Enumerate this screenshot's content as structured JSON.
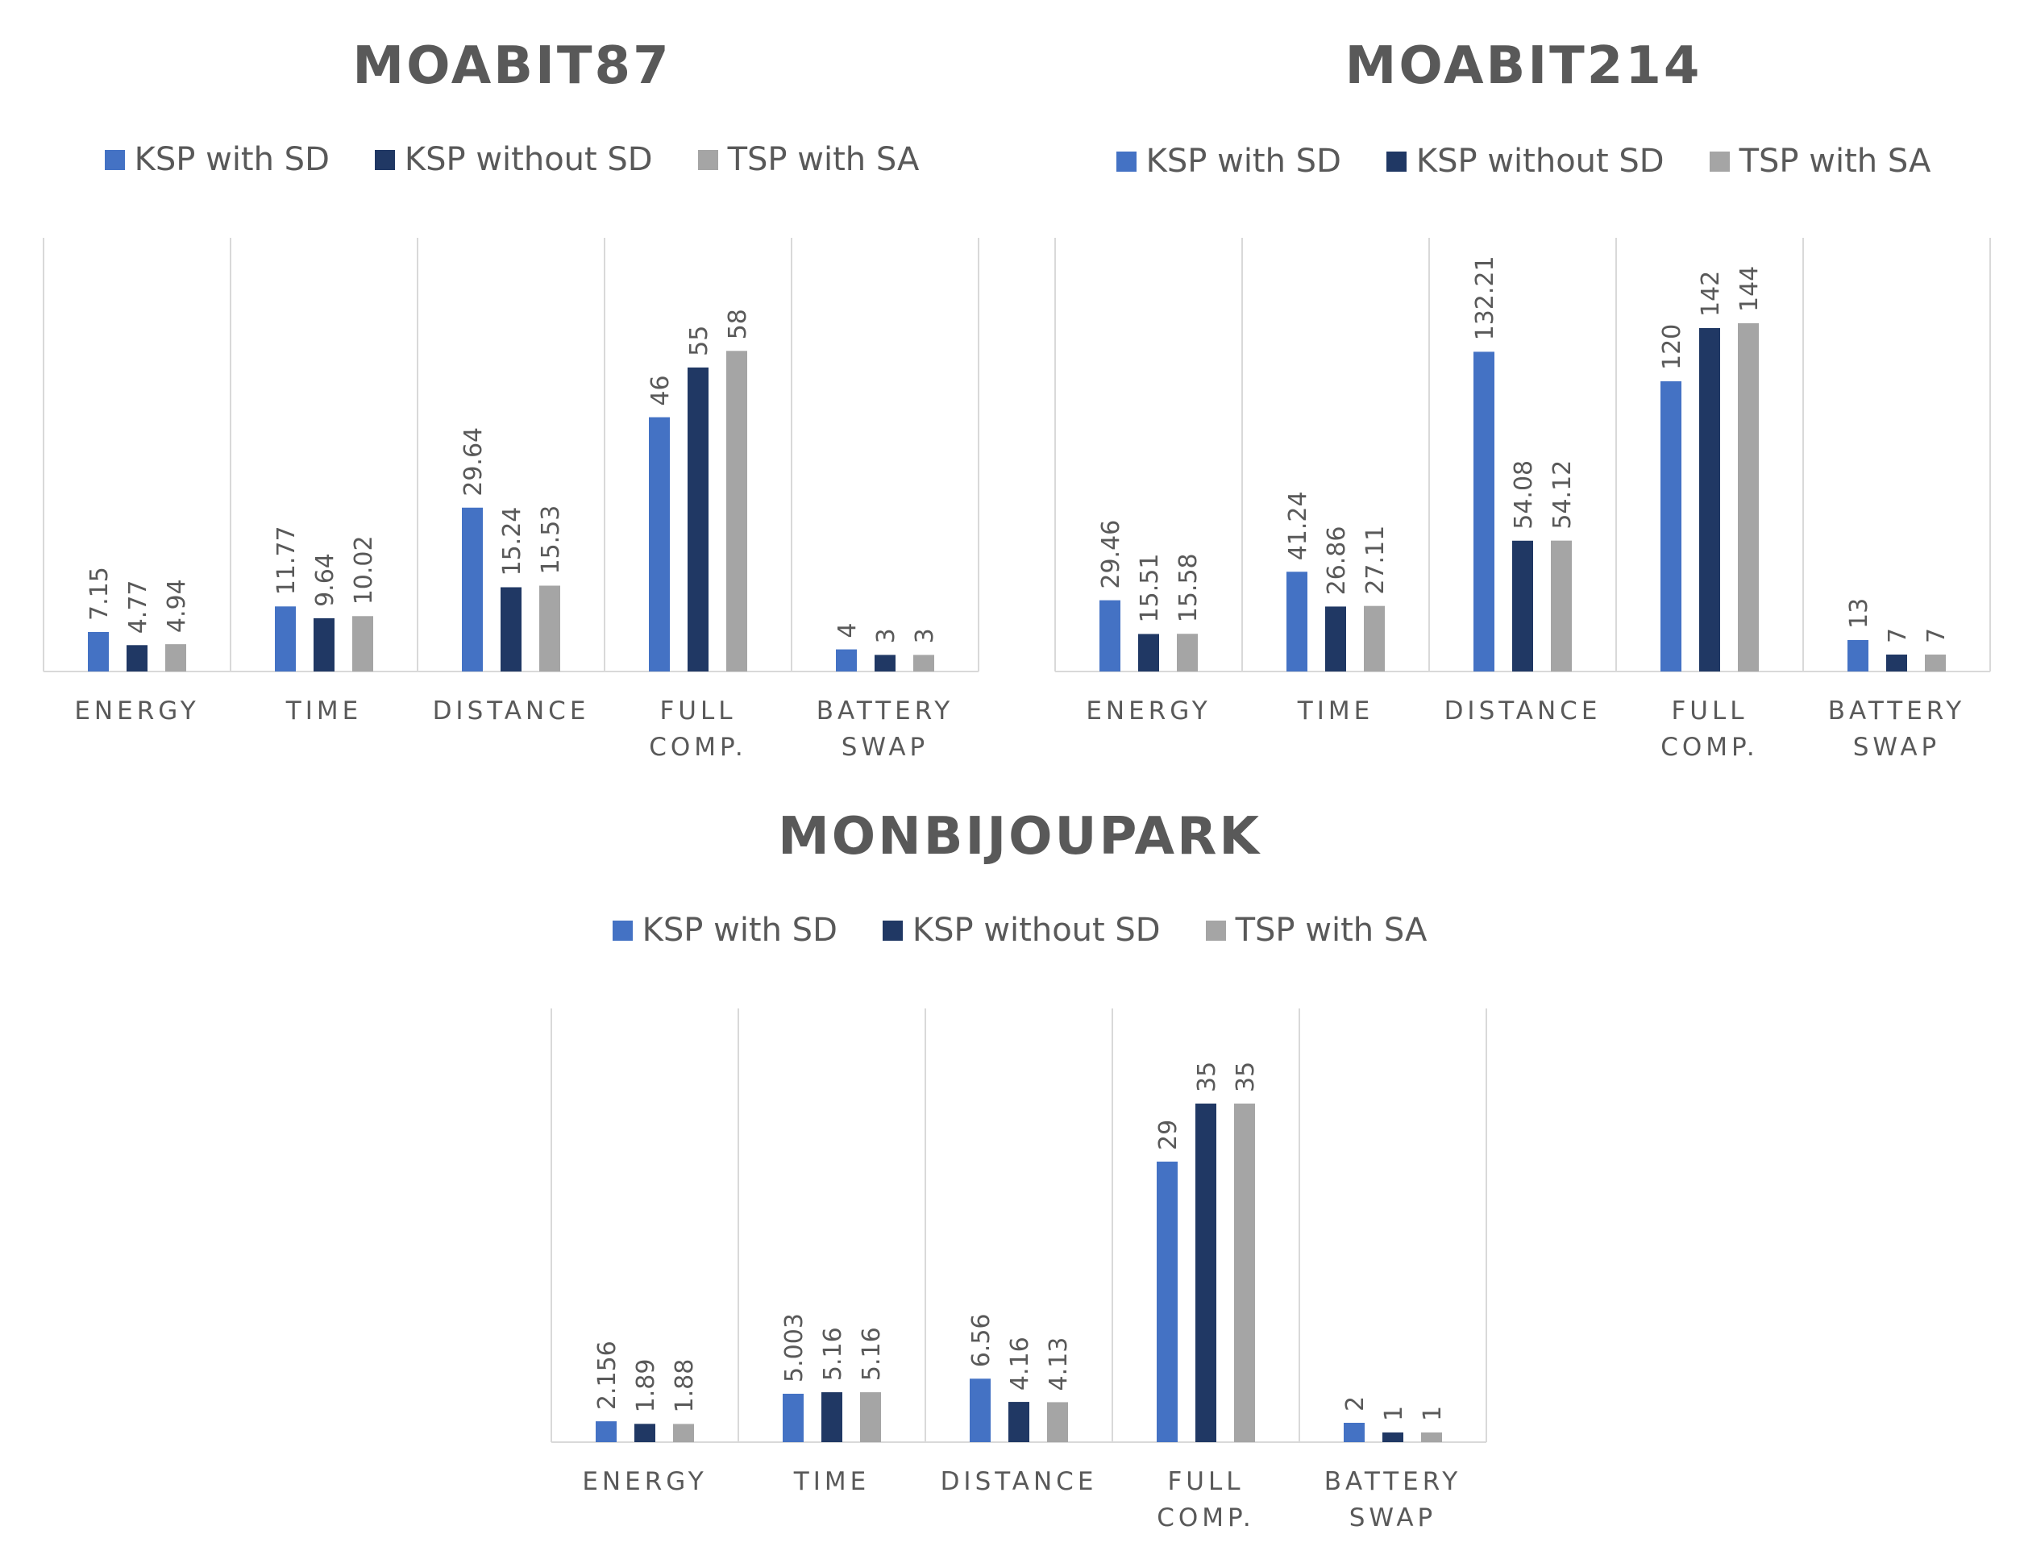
{
  "colors": {
    "KSP with SD": "#4472c4",
    "KSP without SD": "#203864",
    "TSP with SA": "#a5a5a5",
    "gridline": "#d9d9d9",
    "text": "#595959"
  },
  "chart_data": [
    {
      "type": "bar",
      "title": "MOABIT87",
      "legend_position": "top",
      "grid": "vertical category separators",
      "categories": [
        [
          "ENERGY"
        ],
        [
          "TIME"
        ],
        [
          "DISTANCE"
        ],
        [
          "FULL",
          "COMP."
        ],
        [
          "BATTERY",
          "SWAP"
        ]
      ],
      "series": [
        {
          "name": "KSP with SD",
          "values": [
            7.15,
            11.77,
            29.64,
            46,
            4
          ],
          "labels": [
            "7.15",
            "11.77",
            "29.64",
            "46",
            "4"
          ]
        },
        {
          "name": "KSP without SD",
          "values": [
            4.77,
            9.64,
            15.24,
            55,
            3
          ],
          "labels": [
            "4.77",
            "9.64",
            "15.24",
            "55",
            "3"
          ]
        },
        {
          "name": "TSP with SA",
          "values": [
            4.94,
            10.02,
            15.53,
            58,
            3
          ],
          "labels": [
            "4.94",
            "10.02",
            "15.53",
            "58",
            "3"
          ]
        }
      ],
      "ymax": 70
    },
    {
      "type": "bar",
      "title": "MOABIT214",
      "legend_position": "top",
      "grid": "vertical category separators",
      "categories": [
        [
          "ENERGY"
        ],
        [
          "TIME"
        ],
        [
          "DISTANCE"
        ],
        [
          "FULL",
          "COMP."
        ],
        [
          "BATTERY",
          "SWAP"
        ]
      ],
      "series": [
        {
          "name": "KSP with SD",
          "values": [
            29.46,
            41.24,
            132.21,
            120,
            13
          ],
          "labels": [
            "29.46",
            "41.24",
            "132.21",
            "120",
            "13"
          ]
        },
        {
          "name": "KSP without SD",
          "values": [
            15.51,
            26.86,
            54.08,
            142,
            7
          ],
          "labels": [
            "15.51",
            "26.86",
            "54.08",
            "142",
            "7"
          ]
        },
        {
          "name": "TSP with SA",
          "values": [
            15.58,
            27.11,
            54.12,
            144,
            7
          ],
          "labels": [
            "15.58",
            "27.11",
            "54.12",
            "144",
            "7"
          ]
        }
      ],
      "ymax": 160
    },
    {
      "type": "bar",
      "title": "MONBIJOUPARK",
      "legend_position": "top",
      "grid": "vertical category separators",
      "categories": [
        [
          "ENERGY"
        ],
        [
          "TIME"
        ],
        [
          "DISTANCE"
        ],
        [
          "FULL",
          "COMP."
        ],
        [
          "BATTERY",
          "SWAP"
        ]
      ],
      "series": [
        {
          "name": "KSP with SD",
          "values": [
            2.156,
            5.003,
            6.56,
            29,
            2
          ],
          "labels": [
            "2.156",
            "5.003",
            "6.56",
            "29",
            "2"
          ]
        },
        {
          "name": "KSP without SD",
          "values": [
            1.89,
            5.16,
            4.16,
            35,
            1
          ],
          "labels": [
            "1.89",
            "5.16",
            "4.16",
            "35",
            "1"
          ]
        },
        {
          "name": "TSP with SA",
          "values": [
            1.88,
            5.16,
            4.13,
            35,
            1
          ],
          "labels": [
            "1.88",
            "5.16",
            "4.13",
            "35",
            "1"
          ]
        }
      ],
      "ymax": 40
    }
  ]
}
